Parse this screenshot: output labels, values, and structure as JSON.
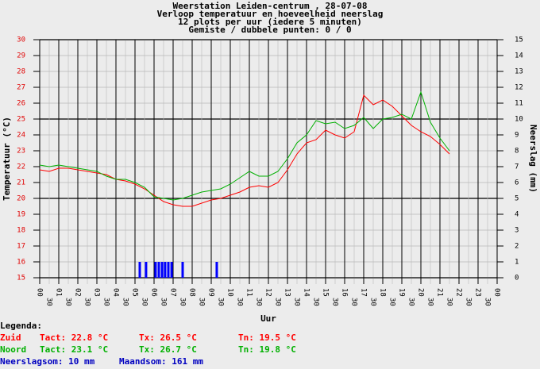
{
  "chart_data": {
    "type": "line",
    "title_lines": [
      "Weerstation Leiden-centrum , 28-07-08",
      "Verloop temperatuur en hoeveelheid neerslag",
      "12 plots per uur (iedere 5 minuten)",
      "Gemiste / dubbele punten: 0 / 0"
    ],
    "x_label": "Uur",
    "y_label": "Temperatuur (°C)",
    "y2_label": "Neerslag (mm)",
    "xlim": [
      0,
      24
    ],
    "ylim": [
      15,
      30
    ],
    "y2lim": [
      0,
      15
    ],
    "yticks": [
      15,
      16,
      17,
      18,
      19,
      20,
      21,
      22,
      23,
      24,
      25,
      26,
      27,
      28,
      29,
      30
    ],
    "y2ticks": [
      0,
      1,
      2,
      3,
      4,
      5,
      6,
      7,
      8,
      9,
      10,
      11,
      12,
      13,
      14,
      15
    ],
    "xticks": [
      {
        "value": 0,
        "label": "00"
      },
      {
        "value": 0.5,
        "label": "30"
      },
      {
        "value": 1,
        "label": "01"
      },
      {
        "value": 1.5,
        "label": "30"
      },
      {
        "value": 2,
        "label": "02"
      },
      {
        "value": 2.5,
        "label": "30"
      },
      {
        "value": 3,
        "label": "03"
      },
      {
        "value": 3.5,
        "label": "30"
      },
      {
        "value": 4,
        "label": "04"
      },
      {
        "value": 4.5,
        "label": "30"
      },
      {
        "value": 5,
        "label": "05"
      },
      {
        "value": 5.5,
        "label": "30"
      },
      {
        "value": 6,
        "label": "06"
      },
      {
        "value": 6.5,
        "label": "30"
      },
      {
        "value": 7,
        "label": "07"
      },
      {
        "value": 7.5,
        "label": "30"
      },
      {
        "value": 8,
        "label": "08"
      },
      {
        "value": 8.5,
        "label": "30"
      },
      {
        "value": 9,
        "label": "09"
      },
      {
        "value": 9.5,
        "label": "30"
      },
      {
        "value": 10,
        "label": "10"
      },
      {
        "value": 10.5,
        "label": "30"
      },
      {
        "value": 11,
        "label": "11"
      },
      {
        "value": 11.5,
        "label": "30"
      },
      {
        "value": 12,
        "label": "12"
      },
      {
        "value": 12.5,
        "label": "30"
      },
      {
        "value": 13,
        "label": "13"
      },
      {
        "value": 13.5,
        "label": "30"
      },
      {
        "value": 14,
        "label": "14"
      },
      {
        "value": 14.5,
        "label": "30"
      },
      {
        "value": 15,
        "label": "15"
      },
      {
        "value": 15.5,
        "label": "30"
      },
      {
        "value": 16,
        "label": "16"
      },
      {
        "value": 16.5,
        "label": "30"
      },
      {
        "value": 17,
        "label": "17"
      },
      {
        "value": 17.5,
        "label": "30"
      },
      {
        "value": 18,
        "label": "18"
      },
      {
        "value": 18.5,
        "label": "30"
      },
      {
        "value": 19,
        "label": "19"
      },
      {
        "value": 19.5,
        "label": "30"
      },
      {
        "value": 20,
        "label": "20"
      },
      {
        "value": 20.5,
        "label": "30"
      },
      {
        "value": 21,
        "label": "21"
      },
      {
        "value": 21.5,
        "label": "30"
      },
      {
        "value": 22,
        "label": "22"
      },
      {
        "value": 22.5,
        "label": "30"
      },
      {
        "value": 23,
        "label": "23"
      },
      {
        "value": 23.5,
        "label": "30"
      },
      {
        "value": 24,
        "label": "00"
      }
    ],
    "series": [
      {
        "name": "Zuid",
        "color": "#ff0000",
        "x": [
          0,
          0.5,
          1,
          1.5,
          2,
          2.5,
          3,
          3.5,
          4,
          4.5,
          5,
          5.5,
          6,
          6.5,
          7,
          7.5,
          8,
          8.5,
          9,
          9.5,
          10,
          10.5,
          11,
          11.5,
          12,
          12.5,
          13,
          13.5,
          14,
          14.5,
          15,
          15.5,
          16,
          16.5,
          17,
          17.5,
          18,
          18.5,
          19,
          19.5,
          20,
          20.5,
          21,
          21.5
        ],
        "values": [
          21.8,
          21.7,
          21.9,
          21.9,
          21.8,
          21.7,
          21.6,
          21.5,
          21.2,
          21.1,
          20.9,
          20.6,
          20.2,
          19.8,
          19.6,
          19.5,
          19.5,
          19.7,
          19.9,
          20.0,
          20.2,
          20.4,
          20.7,
          20.8,
          20.7,
          21.0,
          21.8,
          22.8,
          23.5,
          23.7,
          24.3,
          24.0,
          23.8,
          24.2,
          26.5,
          25.9,
          26.2,
          25.8,
          25.2,
          24.6,
          24.2,
          23.9,
          23.4,
          22.8
        ]
      },
      {
        "name": "Noord",
        "color": "#00b000",
        "x": [
          0,
          0.5,
          1,
          1.5,
          2,
          2.5,
          3,
          3.5,
          4,
          4.5,
          5,
          5.5,
          6,
          6.5,
          7,
          7.5,
          8,
          8.5,
          9,
          9.5,
          10,
          10.5,
          11,
          11.5,
          12,
          12.5,
          13,
          13.5,
          14,
          14.5,
          15,
          15.5,
          16,
          16.5,
          17,
          17.5,
          18,
          18.5,
          19,
          19.5,
          20,
          20.5,
          21,
          21.5
        ],
        "values": [
          22.1,
          22.0,
          22.1,
          22.0,
          21.9,
          21.8,
          21.7,
          21.4,
          21.2,
          21.2,
          21.0,
          20.7,
          20.1,
          20.0,
          19.9,
          20.0,
          20.2,
          20.4,
          20.5,
          20.6,
          20.9,
          21.3,
          21.7,
          21.4,
          21.4,
          21.7,
          22.5,
          23.5,
          24.0,
          24.9,
          24.7,
          24.8,
          24.4,
          24.6,
          25.1,
          24.4,
          25.0,
          25.1,
          25.3,
          25.0,
          26.7,
          24.8,
          23.8,
          23.0
        ]
      }
    ],
    "rain": {
      "axis": "y2",
      "color": "#0000ff",
      "x": [
        5.25,
        5.58,
        6.08,
        6.25,
        6.42,
        6.58,
        6.75,
        6.92,
        7.5,
        9.29
      ],
      "values": [
        1,
        1,
        1,
        1,
        1,
        1,
        1,
        1,
        1,
        1
      ]
    },
    "legend_text": {
      "heading": "Legenda:",
      "rows": [
        {
          "color": "#ff0000",
          "items": [
            "Zuid",
            "Tact: 22.8 °C",
            "Tx: 26.5 °C",
            "Tn: 19.5 °C"
          ]
        },
        {
          "color": "#00b000",
          "items": [
            "Noord",
            "Tact: 23.1 °C",
            "Tx: 26.7 °C",
            "Tn: 19.8 °C"
          ]
        },
        {
          "color": "#0000c0",
          "items": [
            "Neerslagsom: 10 mm",
            "Maandsom: 161 mm"
          ]
        }
      ]
    }
  }
}
